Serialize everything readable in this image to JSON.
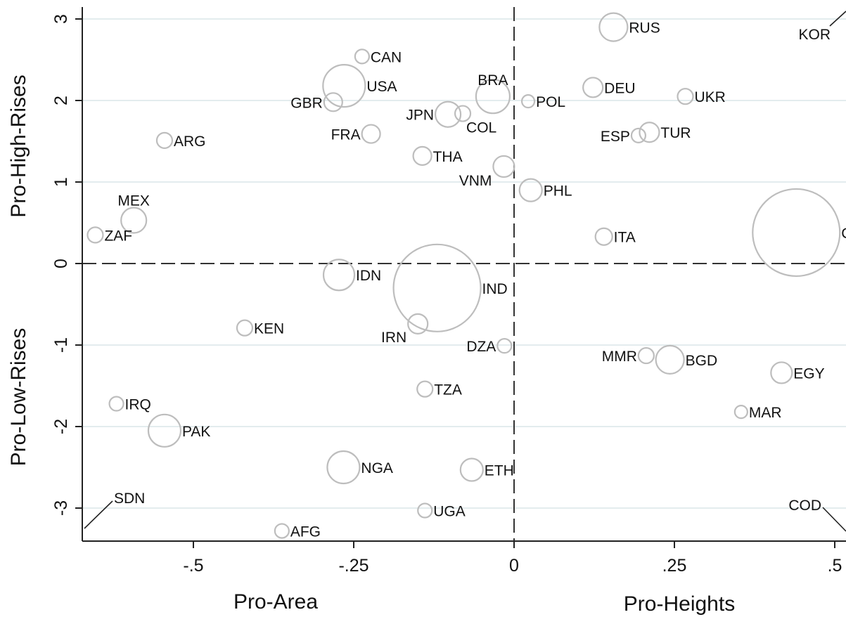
{
  "chart_data": {
    "type": "scatter",
    "title": "",
    "x_axis": {
      "left_label": "Pro-Area",
      "right_label": "Pro-Heights",
      "range": [
        -0.67,
        0.51
      ],
      "ticks": [
        {
          "value": -0.5,
          "label": "-.5"
        },
        {
          "value": -0.25,
          "label": "-.25"
        },
        {
          "value": 0,
          "label": "0"
        },
        {
          "value": 0.25,
          "label": ".25"
        },
        {
          "value": 0.5,
          "label": ".5"
        }
      ]
    },
    "y_axis": {
      "top_label": "Pro-High-Rises",
      "bottom_label": "Pro-Low-Rises",
      "range": [
        -3.35,
        3.2
      ],
      "ticks": [
        {
          "value": 3,
          "label": "3"
        },
        {
          "value": 2,
          "label": "2"
        },
        {
          "value": 1,
          "label": "1"
        },
        {
          "value": 0,
          "label": "0"
        },
        {
          "value": -1,
          "label": "-1"
        },
        {
          "value": -2,
          "label": "-2"
        },
        {
          "value": -3,
          "label": "-3"
        }
      ]
    },
    "grid": "horizontal",
    "reference_lines": {
      "x": 0,
      "y": 0,
      "style": "dashed"
    },
    "marker_color": "#bdbdbd",
    "points": [
      {
        "label": "RUS",
        "x": 0.155,
        "y": 2.9,
        "size": 20,
        "pos": "r"
      },
      {
        "label": "CAN",
        "x": -0.237,
        "y": 2.54,
        "size": 10,
        "pos": "r"
      },
      {
        "label": "USA",
        "x": -0.265,
        "y": 2.18,
        "size": 30,
        "pos": "r"
      },
      {
        "label": "BRA",
        "x": -0.033,
        "y": 2.05,
        "size": 24,
        "pos": "tl"
      },
      {
        "label": "POL",
        "x": 0.022,
        "y": 1.99,
        "size": 9,
        "pos": "r"
      },
      {
        "label": "DEU",
        "x": 0.123,
        "y": 2.16,
        "size": 14,
        "pos": "r"
      },
      {
        "label": "UKR",
        "x": 0.267,
        "y": 2.05,
        "size": 11,
        "pos": "r"
      },
      {
        "label": "GBR",
        "x": -0.282,
        "y": 1.98,
        "size": 13,
        "pos": "l"
      },
      {
        "label": "JPN",
        "x": -0.103,
        "y": 1.83,
        "size": 18,
        "pos": "l"
      },
      {
        "label": "COL",
        "x": -0.08,
        "y": 1.84,
        "size": 11,
        "pos": "br"
      },
      {
        "label": "FRA",
        "x": -0.223,
        "y": 1.59,
        "size": 13,
        "pos": "l"
      },
      {
        "label": "ARG",
        "x": -0.545,
        "y": 1.51,
        "size": 11,
        "pos": "r"
      },
      {
        "label": "ESP",
        "x": 0.194,
        "y": 1.57,
        "size": 10,
        "pos": "l"
      },
      {
        "label": "TUR",
        "x": 0.211,
        "y": 1.61,
        "size": 14,
        "pos": "r"
      },
      {
        "label": "THA",
        "x": -0.143,
        "y": 1.32,
        "size": 13,
        "pos": "r"
      },
      {
        "label": "VNM",
        "x": -0.016,
        "y": 1.19,
        "size": 15,
        "pos": "bl"
      },
      {
        "label": "PHL",
        "x": 0.026,
        "y": 0.9,
        "size": 16,
        "pos": "r"
      },
      {
        "label": "MEX",
        "x": -0.593,
        "y": 0.53,
        "size": 18,
        "pos": "t"
      },
      {
        "label": "ZAF",
        "x": -0.653,
        "y": 0.35,
        "size": 11,
        "pos": "r"
      },
      {
        "label": "ITA",
        "x": 0.14,
        "y": 0.33,
        "size": 12,
        "pos": "r"
      },
      {
        "label": "CHN",
        "x": 0.44,
        "y": 0.38,
        "size": 62,
        "pos": "r"
      },
      {
        "label": "IDN",
        "x": -0.273,
        "y": -0.14,
        "size": 22,
        "pos": "r"
      },
      {
        "label": "IND",
        "x": -0.12,
        "y": -0.3,
        "size": 62,
        "pos": "r"
      },
      {
        "label": "IRN",
        "x": -0.15,
        "y": -0.74,
        "size": 14,
        "pos": "bl"
      },
      {
        "label": "KEN",
        "x": -0.42,
        "y": -0.79,
        "size": 11,
        "pos": "r"
      },
      {
        "label": "DZA",
        "x": -0.015,
        "y": -1.01,
        "size": 10,
        "pos": "l"
      },
      {
        "label": "MMR",
        "x": 0.206,
        "y": -1.13,
        "size": 11,
        "pos": "l"
      },
      {
        "label": "BGD",
        "x": 0.243,
        "y": -1.18,
        "size": 20,
        "pos": "r"
      },
      {
        "label": "EGY",
        "x": 0.417,
        "y": -1.34,
        "size": 15,
        "pos": "r"
      },
      {
        "label": "TZA",
        "x": -0.139,
        "y": -1.54,
        "size": 11,
        "pos": "r"
      },
      {
        "label": "IRQ",
        "x": -0.62,
        "y": -1.72,
        "size": 10,
        "pos": "r"
      },
      {
        "label": "MAR",
        "x": 0.354,
        "y": -1.82,
        "size": 9,
        "pos": "r"
      },
      {
        "label": "PAK",
        "x": -0.545,
        "y": -2.05,
        "size": 23,
        "pos": "r"
      },
      {
        "label": "NGA",
        "x": -0.266,
        "y": -2.5,
        "size": 23,
        "pos": "r"
      },
      {
        "label": "ETH",
        "x": -0.066,
        "y": -2.53,
        "size": 16,
        "pos": "r"
      },
      {
        "label": "UGA",
        "x": -0.139,
        "y": -3.03,
        "size": 10,
        "pos": "r"
      },
      {
        "label": "AFG",
        "x": -0.362,
        "y": -3.28,
        "size": 10,
        "pos": "r"
      }
    ],
    "offscale_points": [
      {
        "label": "KOR",
        "direction": "top-right"
      },
      {
        "label": "SDN",
        "direction": "bottom-left"
      },
      {
        "label": "COD",
        "direction": "bottom-right"
      }
    ]
  }
}
